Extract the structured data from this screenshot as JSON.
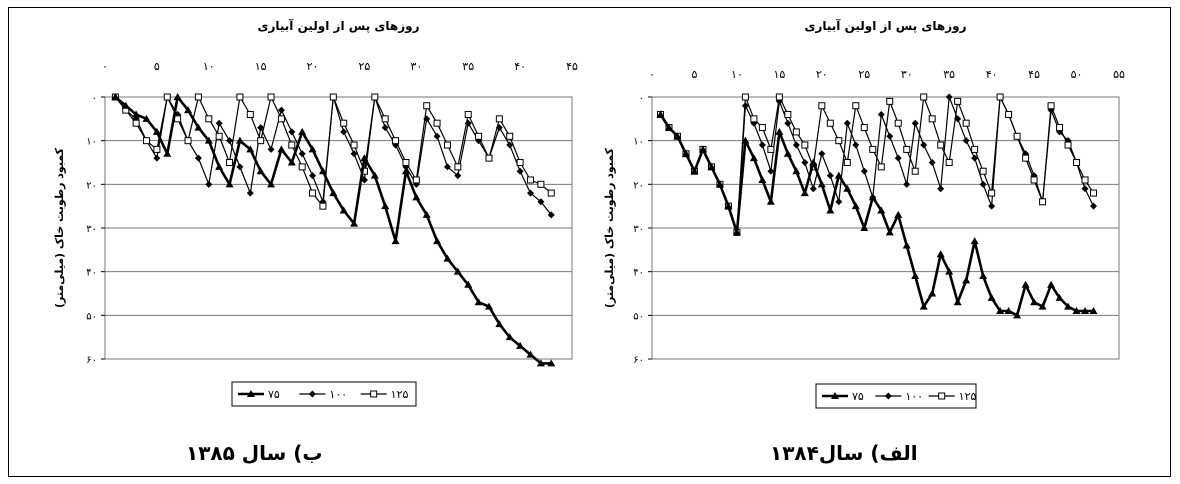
{
  "chart_data": [
    {
      "type": "line",
      "caption": "ب) سال ۱۳۸۵",
      "xlabel": "روزهای پس از اولین آبیاری",
      "ylabel": "کمبود رطوبت خاک (میلی‌متر)",
      "x_tick_labels": [
        "۰",
        "۵",
        "۱۰",
        "۱۵",
        "۲۰",
        "۲۵",
        "۳۰",
        "۳۵",
        "۴۰",
        "۴۵"
      ],
      "y_tick_labels": [
        "۰",
        "۱۰",
        "۲۰",
        "۳۰",
        "۴۰",
        "۵۰",
        "۶۰"
      ],
      "xlim": [
        0,
        45
      ],
      "ylim": [
        0,
        60
      ],
      "y_inverted": true,
      "x_axis_position": "top",
      "grid": "horizontal",
      "legend_position": "bottom",
      "series": [
        {
          "name": "۷۵",
          "marker": "triangle",
          "stroke_width": 2.6,
          "x": [
            1,
            2,
            3,
            4,
            5,
            6,
            7,
            8,
            9,
            10,
            11,
            12,
            13,
            14,
            15,
            16,
            17,
            18,
            19,
            20,
            21,
            22,
            23,
            24,
            25,
            26,
            27,
            28,
            29,
            30,
            31,
            32,
            33,
            34,
            35,
            36,
            37,
            38,
            39,
            40,
            41,
            42,
            43
          ],
          "y": [
            0,
            2,
            4,
            5,
            8,
            13,
            0,
            3,
            7,
            10,
            16,
            20,
            10,
            12,
            17,
            20,
            12,
            15,
            8,
            12,
            17,
            22,
            26,
            29,
            14,
            18,
            25,
            33,
            17,
            23,
            27,
            33,
            37,
            40,
            43,
            47,
            48,
            52,
            55,
            57,
            59,
            61,
            61
          ]
        },
        {
          "name": "۱۰۰",
          "marker": "diamond",
          "stroke_width": 1.2,
          "x": [
            1,
            2,
            3,
            4,
            5,
            6,
            7,
            8,
            9,
            10,
            11,
            12,
            13,
            14,
            15,
            16,
            17,
            18,
            19,
            20,
            21,
            22,
            23,
            24,
            25,
            26,
            27,
            28,
            29,
            30,
            31,
            32,
            33,
            34,
            35,
            36,
            37,
            38,
            39,
            40,
            41,
            42,
            43
          ],
          "y": [
            0,
            3,
            5,
            10,
            14,
            0,
            4,
            10,
            14,
            20,
            6,
            10,
            16,
            22,
            7,
            12,
            3,
            8,
            13,
            18,
            24,
            0,
            8,
            13,
            19,
            0,
            7,
            11,
            16,
            20,
            5,
            9,
            16,
            18,
            6,
            10,
            14,
            7,
            11,
            17,
            22,
            24,
            27
          ]
        },
        {
          "name": "۱۲۵",
          "marker": "square",
          "stroke_width": 1.2,
          "x": [
            1,
            2,
            3,
            4,
            5,
            6,
            7,
            8,
            9,
            10,
            11,
            12,
            13,
            14,
            15,
            16,
            17,
            18,
            19,
            20,
            21,
            22,
            23,
            24,
            25,
            26,
            27,
            28,
            29,
            30,
            31,
            32,
            33,
            34,
            35,
            36,
            37,
            38,
            39,
            40,
            41,
            42,
            43
          ],
          "y": [
            0,
            3,
            6,
            10,
            12,
            0,
            5,
            10,
            0,
            5,
            9,
            15,
            0,
            4,
            10,
            0,
            5,
            11,
            16,
            22,
            25,
            0,
            6,
            11,
            17,
            0,
            5,
            10,
            15,
            19,
            2,
            6,
            11,
            16,
            4,
            9,
            14,
            5,
            9,
            15,
            19,
            20,
            22
          ]
        }
      ]
    },
    {
      "type": "line",
      "caption": "الف) سال۱۳۸۴",
      "xlabel": "روزهای پس از اولین آبیاری",
      "ylabel": "کمبود رطوبت خاک (میلی‌متر)",
      "x_tick_labels": [
        "۰",
        "۵",
        "۱۰",
        "۱۵",
        "۲۰",
        "۲۵",
        "۳۰",
        "۳۵",
        "۴۰",
        "۴۵",
        "۵۰",
        "۵۵"
      ],
      "y_tick_labels": [
        "۰",
        "۱۰",
        "۲۰",
        "۳۰",
        "۴۰",
        "۵۰",
        "۶۰"
      ],
      "xlim": [
        0,
        55
      ],
      "ylim": [
        0,
        60
      ],
      "y_inverted": true,
      "x_axis_position": "top",
      "grid": "horizontal",
      "legend_position": "bottom",
      "series": [
        {
          "name": "۷۵",
          "marker": "triangle",
          "stroke_width": 2.6,
          "x": [
            1,
            2,
            3,
            4,
            5,
            6,
            7,
            8,
            9,
            10,
            11,
            12,
            13,
            14,
            15,
            16,
            17,
            18,
            19,
            20,
            21,
            22,
            23,
            24,
            25,
            26,
            27,
            28,
            29,
            30,
            31,
            32,
            33,
            34,
            35,
            36,
            37,
            38,
            39,
            40,
            41,
            42,
            43,
            44,
            45,
            46,
            47,
            48,
            49,
            50,
            51,
            52
          ],
          "y": [
            4,
            7,
            9,
            13,
            17,
            12,
            16,
            20,
            25,
            31,
            10,
            14,
            19,
            24,
            8,
            13,
            17,
            22,
            15,
            20,
            26,
            18,
            21,
            25,
            30,
            23,
            26,
            31,
            27,
            34,
            41,
            48,
            45,
            36,
            40,
            47,
            42,
            33,
            41,
            46,
            49,
            49,
            50,
            43,
            47,
            48,
            43,
            46,
            48,
            49,
            49,
            49
          ]
        },
        {
          "name": "۱۰۰",
          "marker": "diamond",
          "stroke_width": 1.2,
          "x": [
            1,
            2,
            3,
            4,
            5,
            6,
            7,
            8,
            9,
            10,
            11,
            12,
            13,
            14,
            15,
            16,
            17,
            18,
            19,
            20,
            21,
            22,
            23,
            24,
            25,
            26,
            27,
            28,
            29,
            30,
            31,
            32,
            33,
            34,
            35,
            36,
            37,
            38,
            39,
            40,
            41,
            42,
            43,
            44,
            45,
            46,
            47,
            48,
            49,
            50,
            51,
            52
          ],
          "y": [
            4,
            7,
            9,
            13,
            17,
            12,
            16,
            20,
            25,
            31,
            2,
            6,
            11,
            17,
            1,
            6,
            11,
            15,
            21,
            13,
            18,
            24,
            6,
            11,
            17,
            23,
            4,
            9,
            14,
            20,
            6,
            11,
            15,
            21,
            0,
            5,
            10,
            14,
            20,
            25,
            0,
            4,
            9,
            13,
            18,
            24,
            3,
            8,
            10,
            15,
            21,
            25
          ]
        },
        {
          "name": "۱۲۵",
          "marker": "square",
          "stroke_width": 1.2,
          "x": [
            1,
            2,
            3,
            4,
            5,
            6,
            7,
            8,
            9,
            10,
            11,
            12,
            13,
            14,
            15,
            16,
            17,
            18,
            19,
            20,
            21,
            22,
            23,
            24,
            25,
            26,
            27,
            28,
            29,
            30,
            31,
            32,
            33,
            34,
            35,
            36,
            37,
            38,
            39,
            40,
            41,
            42,
            43,
            44,
            45,
            46,
            47,
            48,
            49,
            50,
            51,
            52
          ],
          "y": [
            4,
            7,
            9,
            13,
            17,
            12,
            16,
            20,
            25,
            31,
            0,
            5,
            7,
            12,
            0,
            4,
            8,
            11,
            16,
            2,
            6,
            10,
            15,
            2,
            7,
            12,
            16,
            1,
            6,
            12,
            17,
            0,
            5,
            11,
            15,
            1,
            6,
            12,
            17,
            22,
            0,
            4,
            9,
            14,
            19,
            24,
            2,
            7,
            11,
            15,
            19,
            22
          ]
        }
      ]
    }
  ],
  "legend": {
    "labels": [
      "۷۵",
      "۱۰۰",
      "۱۲۵"
    ]
  }
}
